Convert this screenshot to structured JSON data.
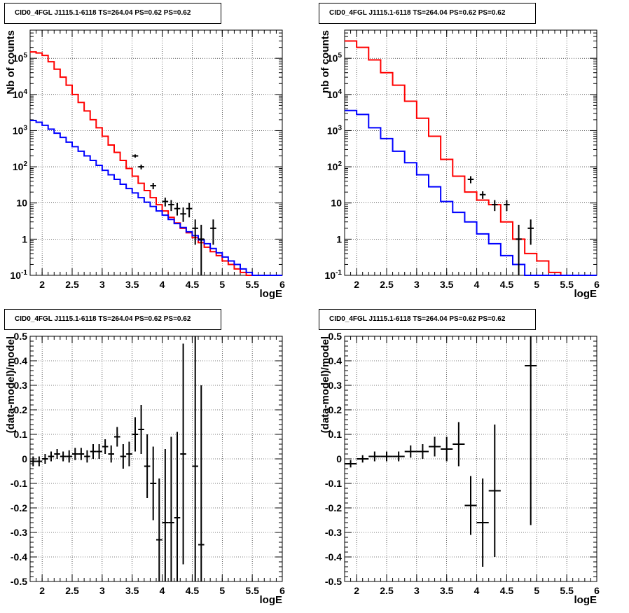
{
  "chart_data": [
    {
      "type": "histogram",
      "panel": "top-left",
      "title": "CID0_4FGL J1115.1-6118 TS=264.04 PS=0.62 PS=0.62",
      "xlabel": "logE",
      "ylabel": "Nb of counts",
      "xlim": [
        1.8,
        6.0
      ],
      "ylim": [
        0.1,
        600000
      ],
      "yscale": "log",
      "grid": true,
      "xticks": [
        "2",
        "2.5",
        "3",
        "3.5",
        "4",
        "4.5",
        "5",
        "5.5",
        "6"
      ],
      "yticks": [
        "10^-1",
        "1",
        "10",
        "10^2",
        "10^3",
        "10^4",
        "10^5"
      ],
      "bin_edges": [
        1.8,
        1.9,
        2.0,
        2.1,
        2.2,
        2.3,
        2.4,
        2.5,
        2.6,
        2.7,
        2.8,
        2.9,
        3.0,
        3.1,
        3.2,
        3.3,
        3.4,
        3.5,
        3.6,
        3.7,
        3.8,
        3.9,
        4.0,
        4.1,
        4.2,
        4.3,
        4.4,
        4.5,
        4.6,
        4.7,
        4.8,
        4.9,
        5.0,
        5.1,
        5.2,
        5.3,
        5.4,
        5.5,
        5.6,
        5.7,
        5.8,
        5.9,
        6.0
      ],
      "series": [
        {
          "color": "#ff0000",
          "values": [
            150000,
            140000,
            120000,
            80000,
            50000,
            30000,
            18000,
            10000,
            6000,
            3500,
            2000,
            1200,
            700,
            400,
            250,
            150,
            90,
            55,
            35,
            22,
            14,
            9,
            6,
            4,
            2.8,
            2.0,
            1.5,
            1.1,
            0.8,
            0.6,
            0.45,
            0.35,
            0.25,
            0.2,
            0.15,
            0.12,
            0.1,
            0.1,
            0.1,
            0.1,
            0.1,
            0.1
          ]
        },
        {
          "color": "#0000ff",
          "values": [
            1900,
            1700,
            1400,
            1100,
            850,
            650,
            480,
            360,
            270,
            200,
            150,
            110,
            80,
            60,
            45,
            33,
            25,
            19,
            14,
            10.5,
            8,
            6,
            4.6,
            3.5,
            2.7,
            2.1,
            1.6,
            1.25,
            0.95,
            0.75,
            0.55,
            0.42,
            0.32,
            0.25,
            0.2,
            0.15,
            0.12,
            0.1,
            0.1,
            0.1,
            0.1,
            0.1
          ]
        }
      ],
      "points": [
        {
          "x": 3.55,
          "y": 200,
          "ylo": 180,
          "yhi": 220
        },
        {
          "x": 3.65,
          "y": 100,
          "ylo": 85,
          "yhi": 115
        },
        {
          "x": 3.85,
          "y": 30,
          "ylo": 24,
          "yhi": 36
        },
        {
          "x": 4.05,
          "y": 11,
          "ylo": 8,
          "yhi": 14
        },
        {
          "x": 4.15,
          "y": 9,
          "ylo": 6,
          "yhi": 12
        },
        {
          "x": 4.25,
          "y": 7,
          "ylo": 4.5,
          "yhi": 10
        },
        {
          "x": 4.35,
          "y": 5,
          "ylo": 3,
          "yhi": 7.5
        },
        {
          "x": 4.45,
          "y": 7,
          "ylo": 4,
          "yhi": 10
        },
        {
          "x": 4.55,
          "y": 2,
          "ylo": 0.7,
          "yhi": 3.5
        },
        {
          "x": 4.65,
          "y": 1,
          "ylo": 0.1,
          "yhi": 2.5
        },
        {
          "x": 4.85,
          "y": 2,
          "ylo": 0.7,
          "yhi": 3.5
        }
      ]
    },
    {
      "type": "histogram",
      "panel": "top-right",
      "title": "CID0_4FGL J1115.1-6118 TS=264.04 PS=0.62 PS=0.62",
      "xlabel": "logE",
      "ylabel": "nb of counts",
      "xlim": [
        1.8,
        6.0
      ],
      "ylim": [
        0.1,
        600000
      ],
      "yscale": "log",
      "grid": true,
      "xticks": [
        "2",
        "2.5",
        "3",
        "3.5",
        "4",
        "4.5",
        "5",
        "5.5",
        "6"
      ],
      "yticks": [
        "10^-1",
        "1",
        "10",
        "10^2",
        "10^3",
        "10^4",
        "10^5"
      ],
      "bin_edges": [
        1.8,
        2.0,
        2.2,
        2.4,
        2.6,
        2.8,
        3.0,
        3.2,
        3.4,
        3.6,
        3.8,
        4.0,
        4.2,
        4.4,
        4.6,
        4.8,
        5.0,
        5.2,
        5.4,
        5.6,
        5.8,
        6.0
      ],
      "series": [
        {
          "color": "#ff0000",
          "values": [
            300000,
            200000,
            90000,
            40000,
            18000,
            6500,
            2200,
            700,
            160,
            55,
            20,
            12,
            9,
            3,
            1,
            0.4,
            0.25,
            0.12,
            0.1,
            0.1,
            0.1
          ]
        },
        {
          "color": "#0000ff",
          "values": [
            3600,
            2800,
            1200,
            600,
            270,
            130,
            60,
            28,
            11,
            5.5,
            3,
            1.4,
            0.75,
            0.35,
            0.2,
            0.1,
            0.1,
            0.1,
            0.1,
            0.1,
            0.1
          ]
        }
      ],
      "points": [
        {
          "x": 3.9,
          "y": 45,
          "ylo": 35,
          "yhi": 55
        },
        {
          "x": 4.1,
          "y": 17,
          "ylo": 13,
          "yhi": 21
        },
        {
          "x": 4.3,
          "y": 9,
          "ylo": 6,
          "yhi": 12
        },
        {
          "x": 4.5,
          "y": 9,
          "ylo": 6,
          "yhi": 12
        },
        {
          "x": 4.7,
          "y": 1,
          "ylo": 0.1,
          "yhi": 2.5
        },
        {
          "x": 4.9,
          "y": 2,
          "ylo": 0.7,
          "yhi": 3.5
        }
      ]
    },
    {
      "type": "scatter",
      "panel": "bottom-left",
      "title": "CID0_4FGL J1115.1-6118 TS=264.04 PS=0.62 PS=0.62",
      "xlabel": "logE",
      "ylabel": "(data-model)/model",
      "xlim": [
        1.8,
        6.0
      ],
      "ylim": [
        -0.5,
        0.5
      ],
      "grid": true,
      "xticks": [
        "2",
        "2.5",
        "3",
        "3.5",
        "4",
        "4.5",
        "5",
        "5.5",
        "6"
      ],
      "yticks": [
        "-0.5",
        "-0.4",
        "-0.3",
        "-0.2",
        "-0.1",
        "0",
        "0.1",
        "0.2",
        "0.3",
        "0.4",
        "0.5"
      ],
      "xerr": 0.05,
      "points": [
        {
          "x": 1.85,
          "y": -0.01,
          "err": 0.02
        },
        {
          "x": 1.95,
          "y": -0.01,
          "err": 0.02
        },
        {
          "x": 2.05,
          "y": 0.0,
          "err": 0.02
        },
        {
          "x": 2.15,
          "y": 0.01,
          "err": 0.02
        },
        {
          "x": 2.25,
          "y": 0.02,
          "err": 0.02
        },
        {
          "x": 2.35,
          "y": 0.01,
          "err": 0.02
        },
        {
          "x": 2.45,
          "y": 0.01,
          "err": 0.025
        },
        {
          "x": 2.55,
          "y": 0.02,
          "err": 0.025
        },
        {
          "x": 2.65,
          "y": 0.02,
          "err": 0.025
        },
        {
          "x": 2.75,
          "y": 0.01,
          "err": 0.025
        },
        {
          "x": 2.85,
          "y": 0.03,
          "err": 0.03
        },
        {
          "x": 2.95,
          "y": 0.03,
          "err": 0.03
        },
        {
          "x": 3.05,
          "y": 0.05,
          "err": 0.03
        },
        {
          "x": 3.15,
          "y": 0.02,
          "err": 0.035
        },
        {
          "x": 3.25,
          "y": 0.09,
          "err": 0.04
        },
        {
          "x": 3.35,
          "y": 0.01,
          "err": 0.05
        },
        {
          "x": 3.45,
          "y": 0.02,
          "err": 0.05
        },
        {
          "x": 3.55,
          "y": 0.1,
          "err": 0.07
        },
        {
          "x": 3.65,
          "y": 0.12,
          "err": 0.1
        },
        {
          "x": 3.75,
          "y": -0.03,
          "err": 0.13
        },
        {
          "x": 3.85,
          "y": -0.1,
          "err": 0.15
        },
        {
          "x": 3.95,
          "y": -0.33,
          "err": 0.25
        },
        {
          "x": 4.05,
          "y": -0.26,
          "err": 0.3
        },
        {
          "x": 4.15,
          "y": -0.26,
          "err": 0.35
        },
        {
          "x": 4.25,
          "y": -0.24,
          "err": 0.35
        },
        {
          "x": 4.35,
          "y": 0.02,
          "err": 0.45
        },
        {
          "x": 4.55,
          "y": -0.03,
          "err": 0.6
        },
        {
          "x": 4.65,
          "y": -0.35,
          "err": 0.65
        }
      ]
    },
    {
      "type": "scatter",
      "panel": "bottom-right",
      "title": "CID0_4FGL J1115.1-6118 TS=264.04 PS=0.62 PS=0.62",
      "xlabel": "logE",
      "ylabel": "(data-model)/model",
      "xlim": [
        1.8,
        6.0
      ],
      "ylim": [
        -0.5,
        0.5
      ],
      "grid": true,
      "xticks": [
        "2",
        "2.5",
        "3",
        "3.5",
        "4",
        "4.5",
        "5",
        "5.5",
        "6"
      ],
      "yticks": [
        "-0.5",
        "-0.4",
        "-0.3",
        "-0.2",
        "-0.1",
        "0",
        "0.1",
        "0.2",
        "0.3",
        "0.4",
        "0.5"
      ],
      "xerr": 0.1,
      "points": [
        {
          "x": 1.9,
          "y": -0.02,
          "err": 0.015
        },
        {
          "x": 2.1,
          "y": 0.0,
          "err": 0.015
        },
        {
          "x": 2.3,
          "y": 0.01,
          "err": 0.02
        },
        {
          "x": 2.5,
          "y": 0.01,
          "err": 0.02
        },
        {
          "x": 2.7,
          "y": 0.01,
          "err": 0.02
        },
        {
          "x": 2.9,
          "y": 0.03,
          "err": 0.025
        },
        {
          "x": 3.1,
          "y": 0.03,
          "err": 0.03
        },
        {
          "x": 3.3,
          "y": 0.05,
          "err": 0.04
        },
        {
          "x": 3.5,
          "y": 0.04,
          "err": 0.05
        },
        {
          "x": 3.7,
          "y": 0.06,
          "err": 0.09
        },
        {
          "x": 3.9,
          "y": -0.19,
          "err": 0.12
        },
        {
          "x": 4.1,
          "y": -0.26,
          "err": 0.18
        },
        {
          "x": 4.3,
          "y": -0.13,
          "err": 0.27
        },
        {
          "x": 4.9,
          "y": 0.38,
          "err": 0.65
        }
      ]
    }
  ]
}
